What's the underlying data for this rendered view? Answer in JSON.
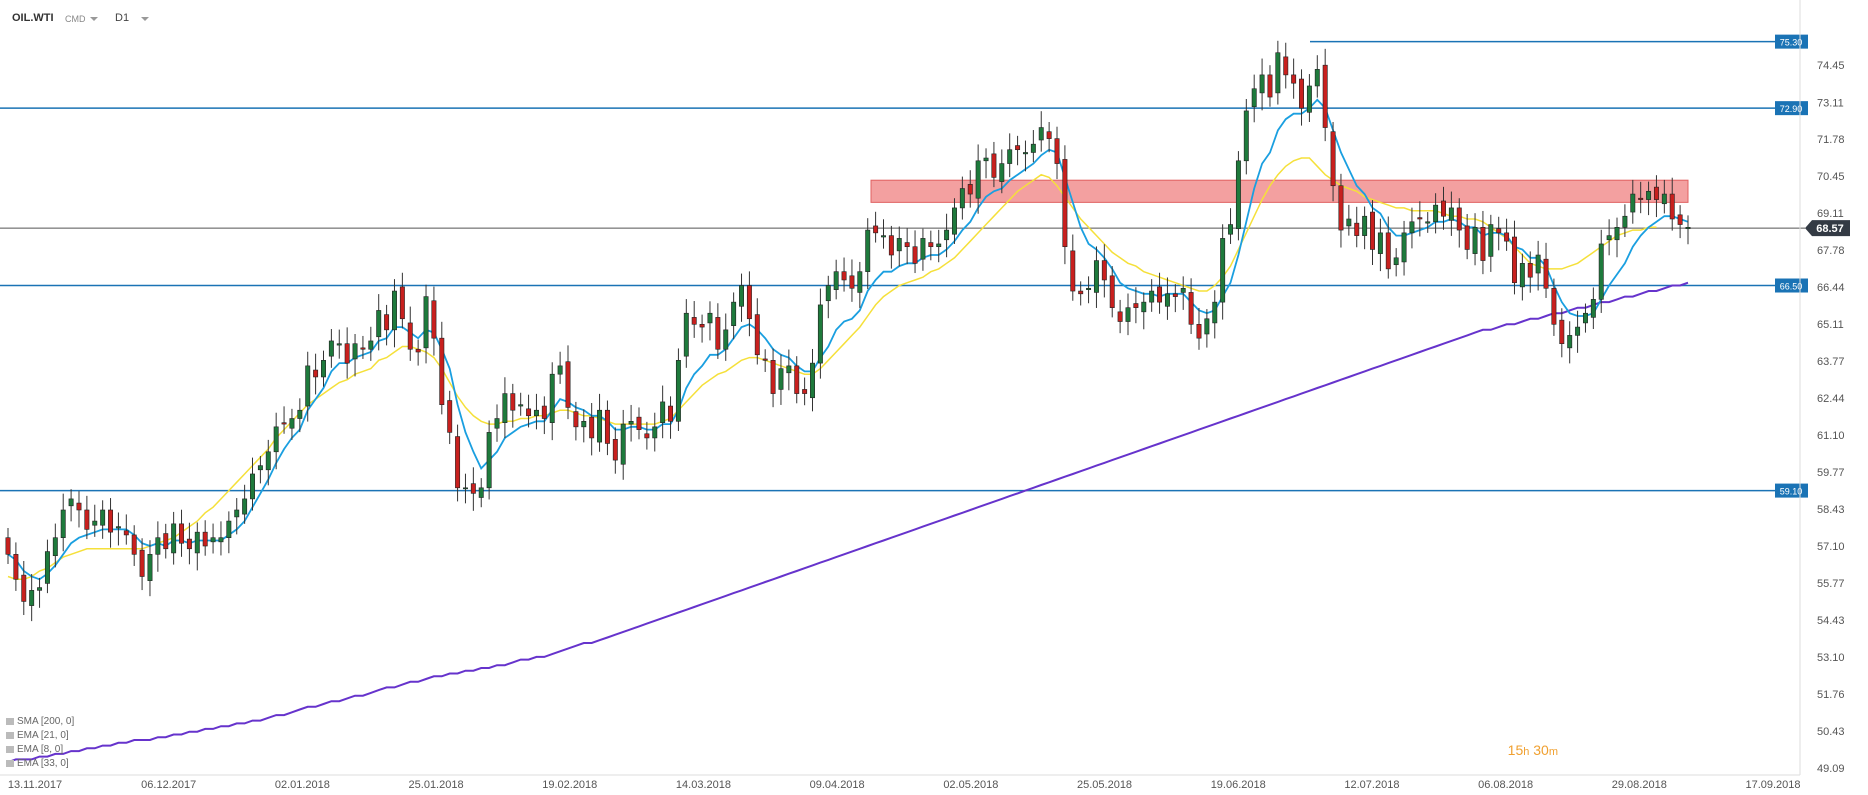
{
  "header": {
    "symbol": "OIL.WTI",
    "market": "CMD",
    "timeframe": "D1"
  },
  "timer": {
    "hours": "15",
    "h_unit": "h",
    "minutes": "30",
    "m_unit": "m"
  },
  "indicators": [
    {
      "label": "SMA [200, 0]",
      "color": "#6633cc"
    },
    {
      "label": "EMA [21, 0]",
      "color": "#f5e03a"
    },
    {
      "label": "EMA [8, 0]",
      "color": "#1a9fe0"
    },
    {
      "label": "EMA [33, 0]",
      "color": "#999999"
    }
  ],
  "chart_data": {
    "type": "candlestick",
    "instrument": "OIL.WTI",
    "ylim": [
      49.09,
      75.9
    ],
    "y_ticks": [
      74.45,
      73.11,
      71.78,
      70.45,
      69.11,
      67.78,
      66.44,
      65.11,
      63.77,
      62.44,
      61.1,
      59.77,
      58.43,
      57.1,
      55.77,
      54.43,
      53.1,
      51.76,
      50.43,
      49.09
    ],
    "x_labels": [
      "13.11.2017",
      "06.12.2017",
      "02.01.2018",
      "25.01.2018",
      "19.02.2018",
      "14.03.2018",
      "09.04.2018",
      "02.05.2018",
      "25.05.2018",
      "19.06.2018",
      "12.07.2018",
      "06.08.2018",
      "29.08.2018",
      "17.09.2018"
    ],
    "levels": [
      {
        "value": 75.3,
        "label": "75.30"
      },
      {
        "value": 72.9,
        "label": "72.90"
      },
      {
        "value": 66.5,
        "label": "66.50"
      },
      {
        "value": 59.1,
        "label": "59.10"
      }
    ],
    "current_price": {
      "value": 68.57,
      "label": "68.57"
    },
    "resistance_zone": [
      69.5,
      70.3
    ],
    "colors": {
      "up": "#1e7a3c",
      "down": "#c8201e",
      "level": "#1a73b5",
      "zone": "#ee7777",
      "ema8": "#1a9fe0",
      "ema21": "#f5e03a",
      "sma200": "#6633cc"
    },
    "closes": [
      56.8,
      55.9,
      55.1,
      55.5,
      55.6,
      56.9,
      57.4,
      58.4,
      58.8,
      58.4,
      57.7,
      58.0,
      58.4,
      57.6,
      57.8,
      57.5,
      56.8,
      56.0,
      56.8,
      57.4,
      57.0,
      57.9,
      57.2,
      57.0,
      57.6,
      57.1,
      57.4,
      57.4,
      58.0,
      58.4,
      58.8,
      59.7,
      60.0,
      60.5,
      61.4,
      61.5,
      61.7,
      62.0,
      63.6,
      63.2,
      63.8,
      64.5,
      64.4,
      63.7,
      64.4,
      64.2,
      64.5,
      65.6,
      64.9,
      66.3,
      65.3,
      64.2,
      64.1,
      66.1,
      64.6,
      62.2,
      61.2,
      59.2,
      59.2,
      59.0,
      59.2,
      61.2,
      61.7,
      62.6,
      62.0,
      62.2,
      61.8,
      62.0,
      61.7,
      63.3,
      63.6,
      62.1,
      61.4,
      61.6,
      61.0,
      62.0,
      60.8,
      60.2,
      61.5,
      61.6,
      61.3,
      61.0,
      61.4,
      62.3,
      61.6,
      63.8,
      65.5,
      65.1,
      65.0,
      65.5,
      64.2,
      64.9,
      65.9,
      66.5,
      65.3,
      64.0,
      63.8,
      62.6,
      63.5,
      63.6,
      62.6,
      62.6,
      63.7,
      65.8,
      66.5,
      67.0,
      66.7,
      66.4,
      67.0,
      68.5,
      68.4,
      68.3,
      67.6,
      68.2,
      67.9,
      67.3,
      68.2,
      67.9,
      68.0,
      68.5,
      69.3,
      70.0,
      69.8,
      71.0,
      71.1,
      70.4,
      70.9,
      71.4,
      71.4,
      71.3,
      71.6,
      72.2,
      71.8,
      70.9,
      67.9,
      66.3,
      66.2,
      66.4,
      67.4,
      66.7,
      65.7,
      65.2,
      65.7,
      65.7,
      65.9,
      66.3,
      65.9,
      66.2,
      66.1,
      66.4,
      65.1,
      64.6,
      65.3,
      65.9,
      68.2,
      68.7,
      71.0,
      72.8,
      73.6,
      74.1,
      73.3,
      74.9,
      74.1,
      73.8,
      72.9,
      73.7,
      74.3,
      72.2,
      70.1,
      68.5,
      68.9,
      68.3,
      69.0,
      67.8,
      68.4,
      67.1,
      67.5,
      68.4,
      68.8,
      68.9,
      68.8,
      69.4,
      69.0,
      69.3,
      68.5,
      67.8,
      68.6,
      67.4,
      68.7,
      68.4,
      68.1,
      66.6,
      67.3,
      66.8,
      67.6,
      66.4,
      65.1,
      64.4,
      64.7,
      65.0,
      65.5,
      66.0,
      68.0,
      68.3,
      68.6,
      69.0,
      69.8,
      69.6,
      69.9,
      69.6,
      69.8,
      68.9,
      68.7,
      68.6
    ],
    "ema8": [
      56.8,
      56.6,
      56.2,
      56.0,
      55.9,
      56.1,
      56.4,
      56.8,
      57.2,
      57.4,
      57.5,
      57.6,
      57.7,
      57.7,
      57.7,
      57.7,
      57.5,
      57.2,
      57.1,
      57.2,
      57.1,
      57.3,
      57.3,
      57.2,
      57.3,
      57.3,
      57.3,
      57.3,
      57.5,
      57.7,
      58.0,
      58.5,
      59.0,
      59.5,
      60.1,
      60.6,
      61.0,
      61.3,
      62.0,
      62.4,
      62.8,
      63.4,
      63.7,
      63.7,
      63.9,
      64.0,
      64.1,
      64.5,
      64.6,
      65.0,
      65.0,
      64.8,
      64.6,
      64.9,
      64.8,
      64.2,
      63.5,
      62.2,
      61.2,
      60.5,
      59.9,
      60.2,
      60.5,
      61.0,
      61.2,
      61.4,
      61.5,
      61.6,
      61.6,
      62.0,
      62.4,
      62.3,
      62.1,
      62.0,
      61.8,
      61.8,
      61.6,
      61.3,
      61.3,
      61.4,
      61.4,
      61.3,
      61.3,
      61.5,
      61.5,
      62.0,
      62.8,
      63.3,
      63.6,
      64.0,
      64.0,
      64.2,
      64.6,
      65.0,
      65.1,
      64.9,
      64.6,
      64.2,
      64.0,
      63.9,
      63.6,
      63.4,
      63.4,
      63.9,
      64.3,
      64.9,
      65.2,
      65.3,
      65.6,
      66.3,
      66.7,
      67.0,
      67.0,
      67.2,
      67.3,
      67.3,
      67.5,
      67.6,
      67.6,
      67.8,
      68.1,
      68.5,
      68.8,
      69.3,
      69.7,
      69.9,
      70.0,
      70.3,
      70.5,
      70.7,
      70.9,
      71.2,
      71.4,
      71.3,
      70.4,
      69.5,
      68.6,
      68.0,
      67.8,
      67.5,
      67.1,
      66.6,
      66.4,
      66.3,
      66.2,
      66.2,
      66.1,
      66.2,
      66.2,
      66.2,
      65.9,
      65.6,
      65.5,
      65.6,
      66.1,
      66.6,
      67.6,
      68.8,
      70.0,
      70.9,
      71.3,
      72.1,
      72.5,
      72.7,
      72.7,
      72.9,
      73.2,
      72.9,
      72.1,
      71.3,
      70.7,
      70.1,
      69.8,
      69.3,
      69.1,
      68.6,
      68.3,
      68.3,
      68.4,
      68.5,
      68.6,
      68.8,
      68.8,
      68.9,
      68.8,
      68.6,
      68.6,
      68.3,
      68.4,
      68.4,
      68.3,
      67.9,
      67.8,
      67.5,
      67.5,
      67.2,
      66.5,
      65.9,
      65.5,
      65.4,
      65.4,
      65.5,
      66.0,
      66.5,
      66.9,
      67.3,
      67.9,
      68.3,
      68.6,
      68.8,
      69.0,
      69.0,
      68.9,
      68.8
    ],
    "ema21": [
      56.0,
      55.9,
      55.9,
      56.0,
      56.2,
      56.3,
      56.5,
      56.7,
      56.8,
      56.9,
      57.0,
      57.0,
      57.0,
      57.0,
      57.0,
      57.0,
      57.0,
      57.0,
      57.1,
      57.2,
      57.3,
      57.4,
      57.6,
      57.8,
      58.0,
      58.3,
      58.5,
      58.8,
      59.1,
      59.4,
      59.7,
      60.0,
      60.3,
      60.6,
      61.0,
      61.3,
      61.6,
      61.9,
      62.2,
      62.4,
      62.6,
      62.8,
      63.0,
      63.1,
      63.3,
      63.4,
      63.5,
      63.8,
      63.9,
      64.1,
      64.3,
      64.3,
      64.2,
      64.1,
      63.9,
      63.5,
      63.0,
      62.5,
      62.1,
      61.8,
      61.6,
      61.5,
      61.5,
      61.6,
      61.6,
      61.7,
      61.7,
      61.8,
      61.8,
      61.9,
      62.0,
      62.0,
      61.9,
      61.8,
      61.8,
      61.7,
      61.6,
      61.5,
      61.5,
      61.5,
      61.5,
      61.5,
      61.5,
      61.6,
      61.7,
      62.0,
      62.3,
      62.6,
      62.9,
      63.1,
      63.3,
      63.4,
      63.6,
      63.8,
      63.9,
      63.9,
      63.8,
      63.7,
      63.6,
      63.5,
      63.4,
      63.3,
      63.3,
      63.5,
      63.8,
      64.1,
      64.4,
      64.7,
      65.0,
      65.4,
      65.8,
      66.1,
      66.3,
      66.5,
      66.6,
      66.7,
      66.8,
      67.0,
      67.1,
      67.3,
      67.5,
      67.8,
      68.1,
      68.4,
      68.7,
      69.0,
      69.3,
      69.6,
      69.9,
      70.1,
      70.3,
      70.5,
      70.4,
      70.1,
      69.7,
      69.3,
      68.9,
      68.6,
      68.3,
      68.0,
      67.7,
      67.5,
      67.3,
      67.2,
      67.0,
      66.9,
      66.8,
      66.7,
      66.6,
      66.5,
      66.4,
      66.3,
      66.3,
      66.5,
      66.8,
      67.2,
      67.8,
      68.4,
      69.0,
      69.6,
      70.1,
      70.5,
      70.8,
      71.0,
      71.1,
      71.1,
      70.8,
      70.5,
      70.3,
      70.1,
      70.0,
      69.9,
      69.7,
      69.6,
      69.5,
      69.4,
      69.3,
      69.3,
      69.2,
      69.2,
      69.2,
      69.2,
      69.1,
      69.0,
      69.0,
      68.9,
      68.9,
      68.8,
      68.6,
      68.4,
      68.2,
      67.9,
      67.6,
      67.3,
      67.2,
      67.1,
      67.1,
      67.1,
      67.2,
      67.3,
      67.5,
      67.7,
      67.9,
      68.1,
      68.3,
      68.4,
      68.5,
      68.5,
      68.6,
      68.6
    ],
    "sma200": [
      49.3,
      49.4,
      49.4,
      49.4,
      49.5,
      49.5,
      49.6,
      49.6,
      49.7,
      49.7,
      49.8,
      49.8,
      49.9,
      49.9,
      50.0,
      50.0,
      50.1,
      50.1,
      50.1,
      50.2,
      50.2,
      50.3,
      50.3,
      50.4,
      50.4,
      50.5,
      50.5,
      50.6,
      50.6,
      50.7,
      50.7,
      50.8,
      50.8,
      50.9,
      51.0,
      51.0,
      51.1,
      51.2,
      51.3,
      51.3,
      51.4,
      51.5,
      51.5,
      51.6,
      51.7,
      51.7,
      51.8,
      51.9,
      52.0,
      52.0,
      52.1,
      52.2,
      52.2,
      52.3,
      52.4,
      52.4,
      52.5,
      52.5,
      52.6,
      52.6,
      52.7,
      52.7,
      52.8,
      52.8,
      52.9,
      53.0,
      53.0,
      53.1,
      53.1,
      53.2,
      53.3,
      53.4,
      53.5,
      53.6,
      53.6,
      53.7,
      53.8,
      53.9,
      54.0,
      54.1,
      54.2,
      54.3,
      54.4,
      54.5,
      54.6,
      54.7,
      54.8,
      54.9,
      55.0,
      55.1,
      55.2,
      55.3,
      55.4,
      55.5,
      55.6,
      55.7,
      55.8,
      55.9,
      56.0,
      56.1,
      56.2,
      56.3,
      56.4,
      56.5,
      56.6,
      56.7,
      56.8,
      56.9,
      57.0,
      57.1,
      57.2,
      57.3,
      57.4,
      57.5,
      57.6,
      57.7,
      57.8,
      57.9,
      58.0,
      58.1,
      58.2,
      58.3,
      58.4,
      58.5,
      58.6,
      58.7,
      58.8,
      58.9,
      59.0,
      59.1,
      59.2,
      59.3,
      59.4,
      59.5,
      59.6,
      59.7,
      59.8,
      59.9,
      60.0,
      60.1,
      60.2,
      60.3,
      60.4,
      60.5,
      60.6,
      60.7,
      60.8,
      60.9,
      61.0,
      61.1,
      61.2,
      61.3,
      61.4,
      61.5,
      61.6,
      61.7,
      61.8,
      61.9,
      62.0,
      62.1,
      62.2,
      62.3,
      62.4,
      62.5,
      62.6,
      62.7,
      62.8,
      62.9,
      63.0,
      63.1,
      63.2,
      63.3,
      63.4,
      63.5,
      63.6,
      63.7,
      63.8,
      63.9,
      64.0,
      64.1,
      64.2,
      64.3,
      64.4,
      64.5,
      64.6,
      64.7,
      64.8,
      64.9,
      64.9,
      65.0,
      65.1,
      65.1,
      65.2,
      65.3,
      65.3,
      65.4,
      65.5,
      65.5,
      65.6,
      65.7,
      65.7,
      65.8,
      65.9,
      65.9,
      66.0,
      66.1,
      66.1,
      66.2,
      66.3,
      66.3,
      66.4,
      66.5,
      66.5,
      66.6
    ]
  }
}
